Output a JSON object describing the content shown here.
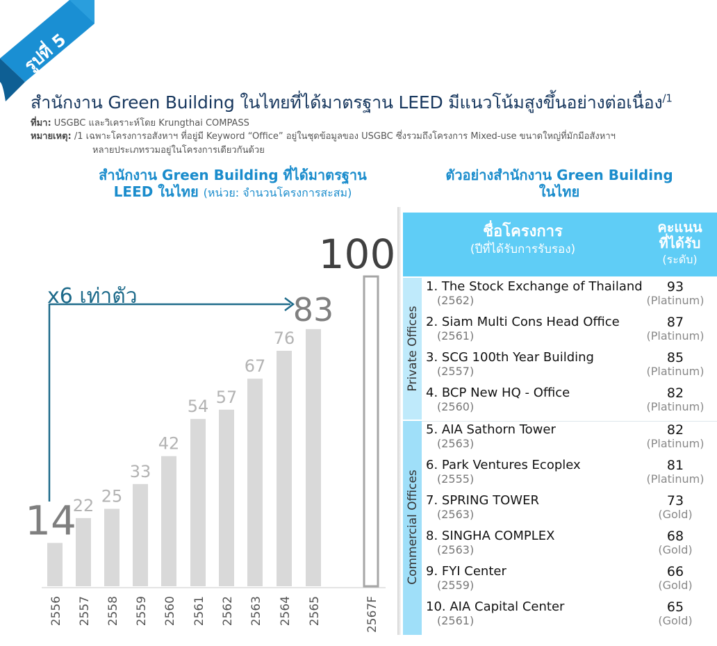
{
  "figure": {
    "badge": "รูปที่ 5",
    "title": "สำนักงาน Green Building ในไทยที่ได้มาตรฐาน LEED มีแนวโน้มสูงขึ้นอย่างต่อเนื่อง",
    "title_note_mark": "/1",
    "source_label": "ที่มา:",
    "source_text": "USGBC และวิเคราะห์โดย Krungthai COMPASS",
    "note_label": "หมายเหตุ:",
    "note_line1": "/1 เฉพาะโครงการอสังหาฯ ที่อยู่มี Keyword “Office” อยู่ในชุดข้อมูลของ USGBC ซึ่งรวมถึงโครงการ Mixed-use ขนาดใหญ่ที่มักมีอสังหาฯ",
    "note_line2": "หลายประเภทรวมอยู่ในโครงการเดียวกันด้วย"
  },
  "chart_data": {
    "type": "bar",
    "title_line1": "สำนักงาน Green Building ที่ได้มาตรฐาน",
    "title_line2": "LEED ในไทย",
    "unit_label": "(หน่วย: จำนวนโครงการสะสม)",
    "categories": [
      "2556",
      "2557",
      "2558",
      "2559",
      "2560",
      "2561",
      "2562",
      "2563",
      "2564",
      "2565",
      "2567F"
    ],
    "values": [
      14,
      22,
      25,
      33,
      42,
      54,
      57,
      67,
      76,
      83,
      100
    ],
    "forecast_index": 10,
    "annotation": "x6 เท่าตัว",
    "colors": {
      "bar": "#d9d9d9",
      "forecast_outline": "#a6a6a6",
      "arrow": "#1d6a8a",
      "label": "#b3b3b3",
      "label_emphasis": "#7f7f7f",
      "label_forecast": "#404040"
    }
  },
  "table": {
    "title_line1": "ตัวอย่างสำนักงาน Green Building",
    "title_line2": "ในไทย",
    "header_name": "ชื่อโครงการ",
    "header_name_sub": "(ปีที่ได้รับการรับรอง)",
    "header_score_line1": "คะแนน",
    "header_score_line2": "ที่ได้รับ",
    "header_score_sub": "(ระดับ)",
    "groups": [
      {
        "label": "Private Offices",
        "rows": [
          {
            "name": "1. The Stock Exchange of Thailand",
            "year": "(2562)",
            "score": "93",
            "level": "(Platinum)"
          },
          {
            "name": "2. Siam Multi Cons Head Office",
            "year": "(2561)",
            "score": "87",
            "level": "(Platinum)"
          },
          {
            "name": "3. SCG 100th Year Building",
            "year": "(2557)",
            "score": "85",
            "level": "(Platinum)"
          },
          {
            "name": "4. BCP New HQ - Office",
            "year": "(2560)",
            "score": "82",
            "level": "(Platinum)"
          }
        ]
      },
      {
        "label": "Commercial Offices",
        "rows": [
          {
            "name": "5. AIA Sathorn Tower",
            "year": "(2563)",
            "score": "82",
            "level": "(Platinum)"
          },
          {
            "name": "6. Park Ventures Ecoplex",
            "year": "(2555)",
            "score": "81",
            "level": "(Platinum)"
          },
          {
            "name": "7. SPRING TOWER",
            "year": "(2563)",
            "score": "73",
            "level": "(Gold)"
          },
          {
            "name": "8. SINGHA COMPLEX",
            "year": "(2563)",
            "score": "68",
            "level": "(Gold)"
          },
          {
            "name": "9. FYI Center",
            "year": "(2559)",
            "score": "66",
            "level": "(Gold)"
          },
          {
            "name": "10. AIA Capital Center",
            "year": "(2561)",
            "score": "65",
            "level": "(Gold)"
          }
        ]
      }
    ]
  }
}
